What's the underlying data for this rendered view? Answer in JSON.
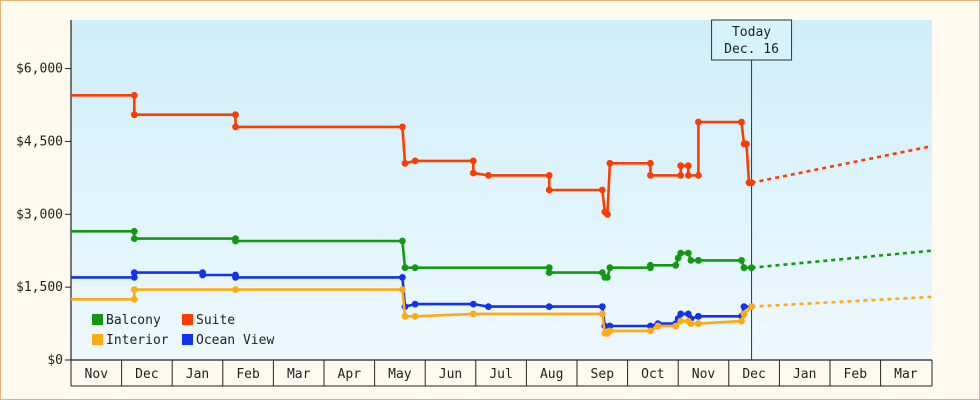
{
  "chart_data": {
    "type": "line",
    "currency_prefix": "$",
    "y_ticks": [
      0,
      1500,
      3000,
      4500,
      6000
    ],
    "y_tick_labels": [
      "$0",
      "$1,500",
      "$3,000",
      "$4,500",
      "$6,000"
    ],
    "ylim": [
      0,
      7000
    ],
    "x_tick_labels": [
      "Nov",
      "Dec",
      "Jan",
      "Feb",
      "Mar",
      "Apr",
      "May",
      "Jun",
      "Jul",
      "Aug",
      "Sep",
      "Oct",
      "Nov",
      "Dec",
      "Jan",
      "Feb",
      "Mar"
    ],
    "background_gradient": [
      "#cfeefa",
      "#eef9fe"
    ],
    "today_label": [
      "Today",
      "Dec. 16"
    ],
    "today_month_index": 13.45,
    "legend_position": "bottom-left",
    "series": [
      {
        "name": "Suite",
        "color": "#ff3c00",
        "points": [
          [
            0.0,
            5450
          ],
          [
            1.25,
            5450
          ],
          [
            1.25,
            5050
          ],
          [
            3.25,
            5050
          ],
          [
            3.25,
            4800
          ],
          [
            6.55,
            4800
          ],
          [
            6.6,
            4050
          ],
          [
            6.8,
            4100
          ],
          [
            7.95,
            4100
          ],
          [
            7.95,
            3850
          ],
          [
            8.25,
            3800
          ],
          [
            9.45,
            3800
          ],
          [
            9.45,
            3500
          ],
          [
            10.5,
            3500
          ],
          [
            10.55,
            3050
          ],
          [
            10.6,
            3000
          ],
          [
            10.65,
            4050
          ],
          [
            11.45,
            4050
          ],
          [
            11.45,
            3800
          ],
          [
            12.05,
            3800
          ],
          [
            12.05,
            4000
          ],
          [
            12.2,
            4000
          ],
          [
            12.2,
            3800
          ],
          [
            12.4,
            3800
          ],
          [
            12.4,
            4900
          ],
          [
            13.25,
            4900
          ],
          [
            13.3,
            4450
          ],
          [
            13.35,
            4450
          ],
          [
            13.4,
            3650
          ],
          [
            13.45,
            3650
          ]
        ],
        "projection": [
          [
            13.45,
            3650
          ],
          [
            17.0,
            4400
          ]
        ]
      },
      {
        "name": "Balcony",
        "color": "#119911",
        "points": [
          [
            0.0,
            2650
          ],
          [
            1.25,
            2650
          ],
          [
            1.25,
            2500
          ],
          [
            3.25,
            2500
          ],
          [
            3.25,
            2450
          ],
          [
            6.55,
            2450
          ],
          [
            6.6,
            1900
          ],
          [
            6.8,
            1900
          ],
          [
            9.45,
            1900
          ],
          [
            9.45,
            1800
          ],
          [
            10.5,
            1800
          ],
          [
            10.55,
            1700
          ],
          [
            10.6,
            1700
          ],
          [
            10.65,
            1900
          ],
          [
            11.45,
            1900
          ],
          [
            11.45,
            1950
          ],
          [
            11.95,
            1950
          ],
          [
            12.0,
            2100
          ],
          [
            12.05,
            2200
          ],
          [
            12.2,
            2200
          ],
          [
            12.25,
            2050
          ],
          [
            12.4,
            2050
          ],
          [
            12.4,
            2050
          ],
          [
            13.25,
            2050
          ],
          [
            13.3,
            1900
          ],
          [
            13.45,
            1900
          ]
        ],
        "projection": [
          [
            13.45,
            1900
          ],
          [
            17.0,
            2250
          ]
        ]
      },
      {
        "name": "Ocean View",
        "color": "#1133ee",
        "points": [
          [
            0.0,
            1700
          ],
          [
            1.25,
            1700
          ],
          [
            1.25,
            1800
          ],
          [
            2.6,
            1800
          ],
          [
            2.6,
            1750
          ],
          [
            3.25,
            1750
          ],
          [
            3.25,
            1700
          ],
          [
            6.55,
            1700
          ],
          [
            6.6,
            1100
          ],
          [
            6.8,
            1150
          ],
          [
            7.95,
            1150
          ],
          [
            8.25,
            1100
          ],
          [
            9.45,
            1100
          ],
          [
            10.5,
            1100
          ],
          [
            10.55,
            700
          ],
          [
            10.65,
            700
          ],
          [
            11.45,
            700
          ],
          [
            11.6,
            750
          ],
          [
            11.95,
            750
          ],
          [
            12.0,
            850
          ],
          [
            12.05,
            950
          ],
          [
            12.2,
            950
          ],
          [
            12.25,
            850
          ],
          [
            12.4,
            900
          ],
          [
            13.25,
            900
          ],
          [
            13.3,
            1100
          ],
          [
            13.45,
            1100
          ]
        ],
        "projection": []
      },
      {
        "name": "Interior",
        "color": "#ffaa11",
        "points": [
          [
            0.0,
            1250
          ],
          [
            1.25,
            1250
          ],
          [
            1.25,
            1450
          ],
          [
            3.25,
            1450
          ],
          [
            6.55,
            1450
          ],
          [
            6.6,
            900
          ],
          [
            6.8,
            900
          ],
          [
            7.95,
            950
          ],
          [
            10.5,
            950
          ],
          [
            10.55,
            550
          ],
          [
            10.6,
            550
          ],
          [
            10.65,
            600
          ],
          [
            11.45,
            600
          ],
          [
            11.6,
            700
          ],
          [
            11.95,
            700
          ],
          [
            12.05,
            800
          ],
          [
            12.2,
            800
          ],
          [
            12.25,
            750
          ],
          [
            12.4,
            750
          ],
          [
            13.25,
            800
          ],
          [
            13.3,
            950
          ],
          [
            13.45,
            1100
          ]
        ],
        "projection": [
          [
            13.45,
            1100
          ],
          [
            17.0,
            1300
          ]
        ]
      }
    ],
    "legend": [
      {
        "name": "Balcony",
        "color": "#119911"
      },
      {
        "name": "Suite",
        "color": "#ff3c00"
      },
      {
        "name": "Interior",
        "color": "#ffaa11"
      },
      {
        "name": "Ocean View",
        "color": "#1133ee"
      }
    ]
  }
}
